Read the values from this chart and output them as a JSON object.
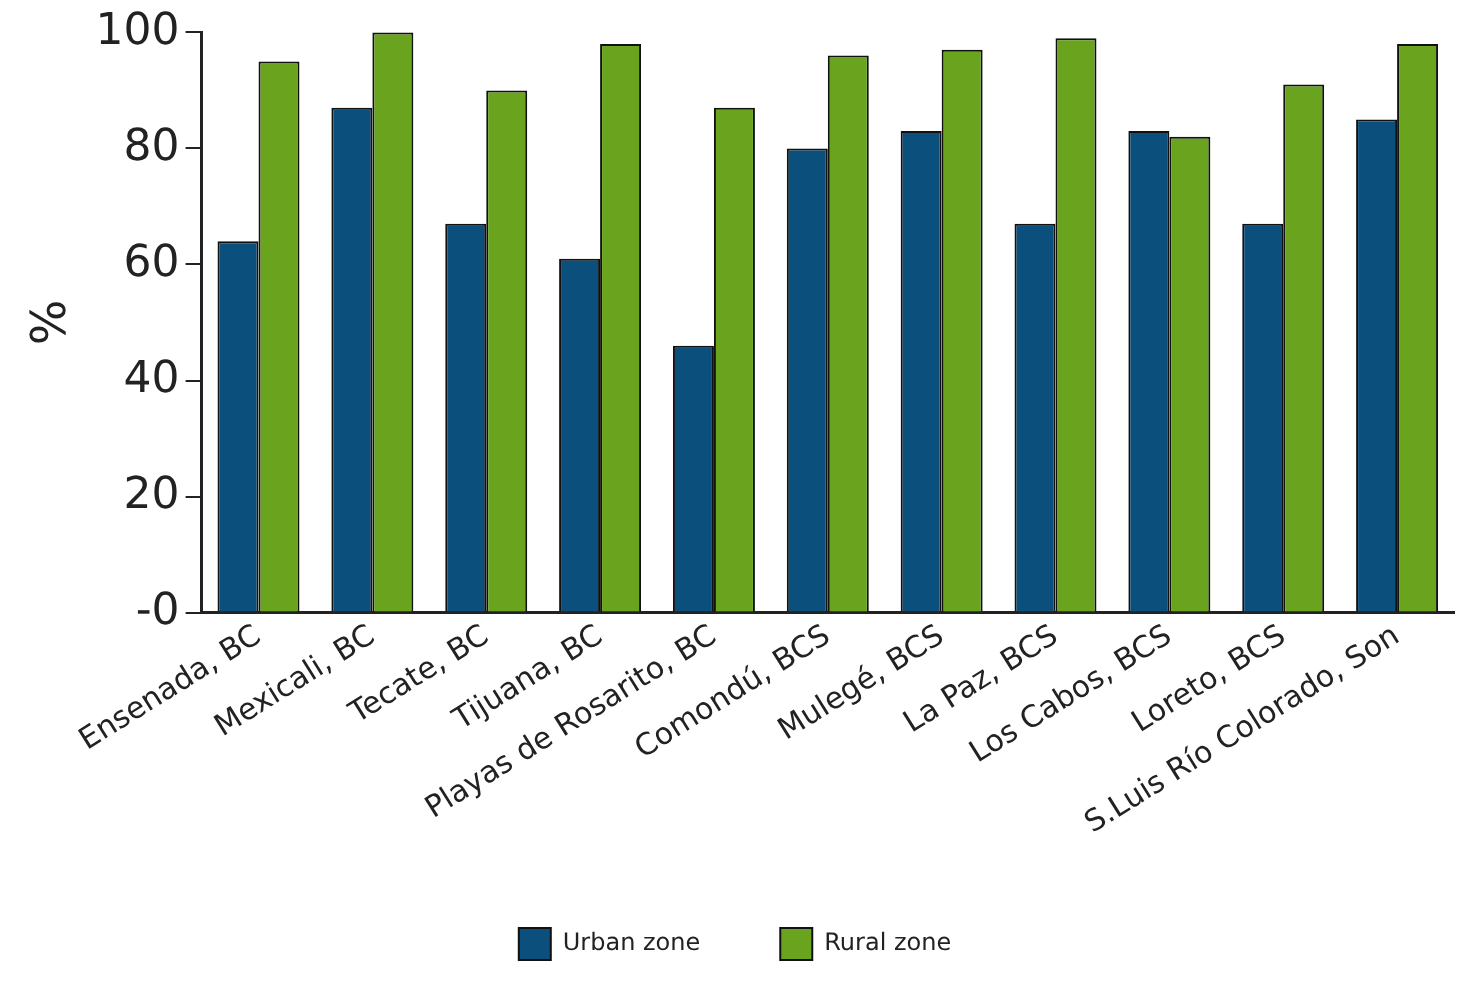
{
  "chart_data": {
    "type": "bar",
    "ylabel": "%",
    "categories": [
      "Ensenada, BC",
      "Mexicali, BC",
      "Tecate, BC",
      "Tijuana, BC",
      "Playas de Rosarito, BC",
      "Comondú, BCS",
      "Mulegé, BCS",
      "La Paz, BCS",
      "Los Cabos, BCS",
      "Loreto, BCS",
      "S.Luis Río Colorado, Son"
    ],
    "series": [
      {
        "name": "Urban zone",
        "color": "#0b4f7c",
        "values": [
          64,
          87,
          67,
          61,
          46,
          80,
          83,
          67,
          83,
          67,
          85
        ]
      },
      {
        "name": "Rural zone",
        "color": "#6aa41f",
        "values": [
          95,
          100,
          90,
          98,
          87,
          96,
          97,
          99,
          82,
          91,
          98
        ]
      }
    ],
    "ylim": [
      0,
      100
    ],
    "yticks": [
      {
        "value": 0,
        "label": "-0"
      },
      20,
      40,
      60,
      80,
      100
    ],
    "grid": false,
    "legend": "bottom"
  }
}
